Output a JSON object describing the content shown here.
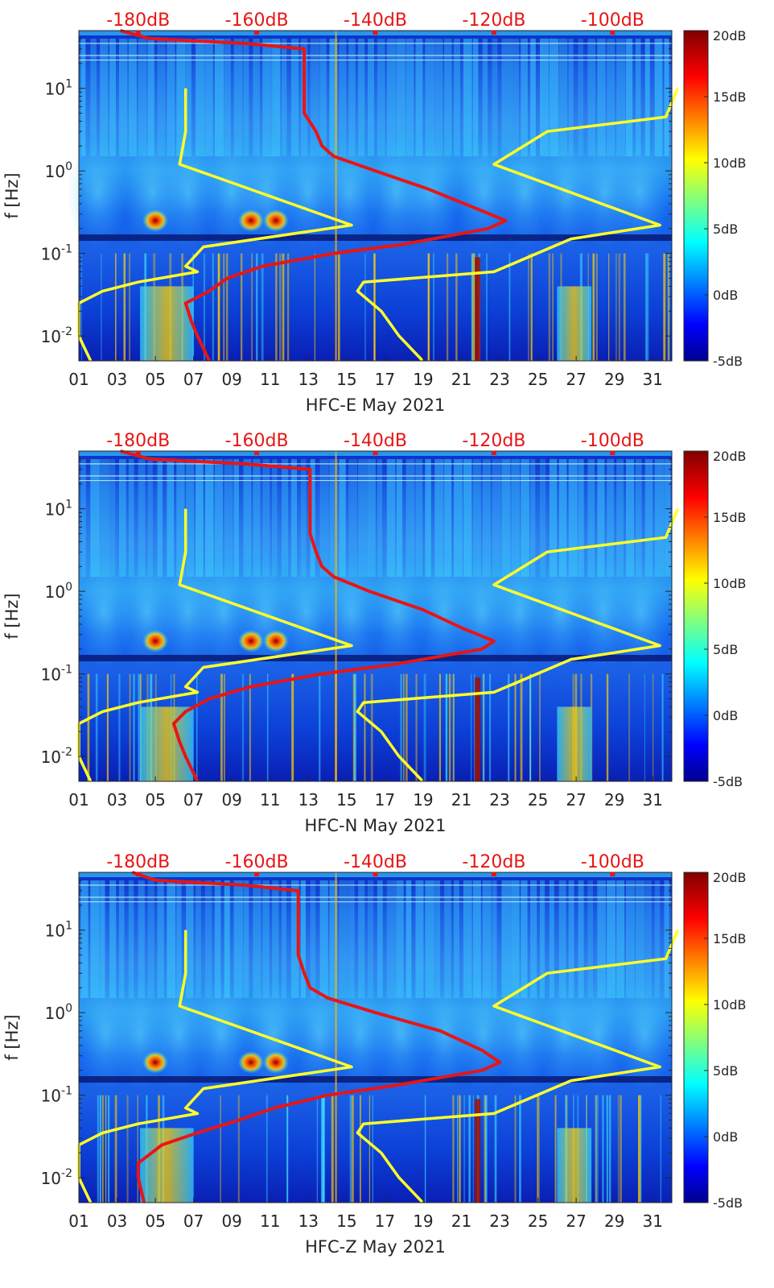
{
  "figure": {
    "colormap": "jet",
    "ref_color": "#e81515",
    "model_color": "#ffff2a",
    "top_axis_color": "#e81515"
  },
  "chart_data": [
    {
      "type": "heatmap",
      "title": "",
      "xlabel": "HFC-E May 2021",
      "ylabel": "f [Hz]",
      "x_ticks": [
        "01",
        "03",
        "05",
        "07",
        "09",
        "11",
        "13",
        "15",
        "17",
        "19",
        "21",
        "23",
        "25",
        "27",
        "29",
        "31"
      ],
      "x_range_days": [
        1,
        32
      ],
      "y_ticks": [
        "10-2",
        "10-1",
        "100",
        "101"
      ],
      "y_range_hz": [
        0.005,
        50
      ],
      "top_axis_ticks": [
        "-180dB",
        "-160dB",
        "-140dB",
        "-120dB",
        "-100dB"
      ],
      "top_axis_range_db": [
        -190,
        -90
      ],
      "colorbar": {
        "ticks": [
          "20dB",
          "15dB",
          "10dB",
          "5dB",
          "0dB",
          "-5dB"
        ],
        "range_db": [
          -5,
          20
        ]
      },
      "series": [
        {
          "name": "red PSD curve",
          "color": "red",
          "freq_hz": [
            50,
            40,
            35,
            30,
            20,
            10,
            5,
            3,
            2,
            1.5,
            1,
            0.6,
            0.35,
            0.25,
            0.2,
            0.13,
            0.1,
            0.07,
            0.05,
            0.035,
            0.025,
            0.015,
            0.01,
            0.005
          ],
          "level_db": [
            -183,
            -178,
            -162,
            -152,
            -152,
            -152,
            -152,
            -150,
            -149,
            -147,
            -140,
            -131,
            -123,
            -118,
            -121,
            -135,
            -147,
            -159,
            -165,
            -168,
            -172,
            -171,
            -170,
            -168
          ]
        },
        {
          "name": "yellow low noise model",
          "color": "yellow",
          "freq_hz": [
            10,
            3,
            1.2,
            0.8,
            0.22,
            0.12,
            0.07,
            0.06,
            0.045,
            0.035,
            0.025,
            0.015,
            0.01,
            0.005
          ],
          "level_db": [
            -172,
            -172,
            -173,
            -166,
            -144,
            -169,
            -172,
            -170,
            -180,
            -186,
            -190,
            -190,
            -190,
            -188
          ]
        },
        {
          "name": "yellow high noise model",
          "color": "yellow",
          "freq_hz": [
            10,
            4.5,
            3,
            1.2,
            0.22,
            0.15,
            0.06,
            0.045,
            0.035,
            0.02,
            0.01,
            0.005
          ],
          "level_db": [
            -89,
            -91,
            -111,
            -120,
            -92,
            -107,
            -120,
            -142,
            -143,
            -139,
            -136,
            -132
          ]
        }
      ]
    },
    {
      "type": "heatmap",
      "title": "",
      "xlabel": "HFC-N May 2021",
      "ylabel": "f [Hz]",
      "x_ticks": [
        "01",
        "03",
        "05",
        "07",
        "09",
        "11",
        "13",
        "15",
        "17",
        "19",
        "21",
        "23",
        "25",
        "27",
        "29",
        "31"
      ],
      "x_range_days": [
        1,
        32
      ],
      "y_ticks": [
        "10-2",
        "10-1",
        "100",
        "101"
      ],
      "y_range_hz": [
        0.005,
        50
      ],
      "top_axis_ticks": [
        "-180dB",
        "-160dB",
        "-140dB",
        "-120dB",
        "-100dB"
      ],
      "top_axis_range_db": [
        -190,
        -90
      ],
      "colorbar": {
        "ticks": [
          "20dB",
          "15dB",
          "10dB",
          "5dB",
          "0dB",
          "-5dB"
        ],
        "range_db": [
          -5,
          20
        ]
      },
      "series": [
        {
          "name": "red PSD curve",
          "color": "red",
          "freq_hz": [
            50,
            40,
            35,
            30,
            20,
            10,
            5,
            3,
            2,
            1.5,
            1,
            0.6,
            0.35,
            0.25,
            0.2,
            0.13,
            0.1,
            0.07,
            0.05,
            0.035,
            0.025,
            0.015,
            0.01,
            0.005
          ],
          "level_db": [
            -183,
            -178,
            -162,
            -151,
            -151,
            -151,
            -151,
            -150,
            -149,
            -147,
            -141,
            -132,
            -125,
            -120,
            -122,
            -137,
            -149,
            -161,
            -168,
            -172,
            -174,
            -173,
            -172,
            -170
          ]
        },
        {
          "name": "yellow low noise model",
          "color": "yellow",
          "freq_hz": [
            10,
            3,
            1.2,
            0.8,
            0.22,
            0.12,
            0.07,
            0.06,
            0.045,
            0.035,
            0.025,
            0.015,
            0.01,
            0.005
          ],
          "level_db": [
            -172,
            -172,
            -173,
            -166,
            -144,
            -169,
            -172,
            -170,
            -180,
            -186,
            -190,
            -190,
            -190,
            -188
          ]
        },
        {
          "name": "yellow high noise model",
          "color": "yellow",
          "freq_hz": [
            10,
            4.5,
            3,
            1.2,
            0.22,
            0.15,
            0.06,
            0.045,
            0.035,
            0.02,
            0.01,
            0.005
          ],
          "level_db": [
            -89,
            -91,
            -111,
            -120,
            -92,
            -107,
            -120,
            -142,
            -143,
            -139,
            -136,
            -132
          ]
        }
      ]
    },
    {
      "type": "heatmap",
      "title": "",
      "xlabel": "HFC-Z May 2021",
      "ylabel": "f [Hz]",
      "x_ticks": [
        "01",
        "03",
        "05",
        "07",
        "09",
        "11",
        "13",
        "15",
        "17",
        "19",
        "21",
        "23",
        "25",
        "27",
        "29",
        "31"
      ],
      "x_range_days": [
        1,
        32
      ],
      "y_ticks": [
        "10-2",
        "10-1",
        "100",
        "101"
      ],
      "y_range_hz": [
        0.005,
        50
      ],
      "top_axis_ticks": [
        "-180dB",
        "-160dB",
        "-140dB",
        "-120dB",
        "-100dB"
      ],
      "top_axis_range_db": [
        -190,
        -90
      ],
      "colorbar": {
        "ticks": [
          "20dB",
          "15dB",
          "10dB",
          "5dB",
          "0dB",
          "-5dB"
        ],
        "range_db": [
          -5,
          20
        ]
      },
      "series": [
        {
          "name": "red PSD curve",
          "color": "red",
          "freq_hz": [
            50,
            40,
            35,
            30,
            20,
            10,
            5,
            3,
            2,
            1.5,
            1,
            0.6,
            0.35,
            0.25,
            0.2,
            0.13,
            0.1,
            0.07,
            0.05,
            0.035,
            0.025,
            0.015,
            0.01,
            0.005
          ],
          "level_db": [
            -181,
            -177,
            -162,
            -153,
            -153,
            -153,
            -153,
            -152,
            -151,
            -148,
            -140,
            -129,
            -122,
            -119,
            -122,
            -137,
            -148,
            -157,
            -163,
            -170,
            -176,
            -180,
            -180,
            -179
          ]
        },
        {
          "name": "yellow low noise model",
          "color": "yellow",
          "freq_hz": [
            10,
            3,
            1.2,
            0.8,
            0.22,
            0.12,
            0.07,
            0.06,
            0.045,
            0.035,
            0.025,
            0.015,
            0.01,
            0.005
          ],
          "level_db": [
            -172,
            -172,
            -173,
            -166,
            -144,
            -169,
            -172,
            -170,
            -180,
            -186,
            -190,
            -190,
            -190,
            -188
          ]
        },
        {
          "name": "yellow high noise model",
          "color": "yellow",
          "freq_hz": [
            10,
            4.5,
            3,
            1.2,
            0.22,
            0.15,
            0.06,
            0.045,
            0.035,
            0.02,
            0.01,
            0.005
          ],
          "level_db": [
            -89,
            -91,
            -111,
            -120,
            -92,
            -107,
            -120,
            -142,
            -143,
            -139,
            -136,
            -132
          ]
        }
      ]
    }
  ]
}
